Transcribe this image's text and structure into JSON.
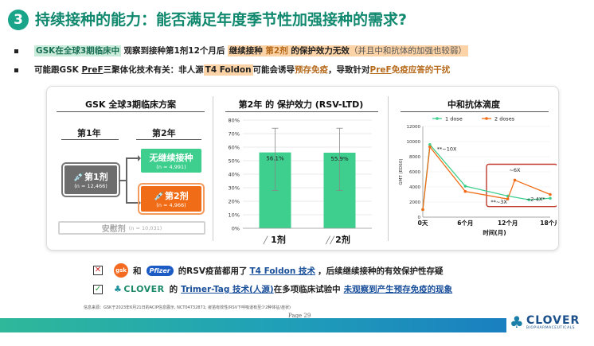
{
  "header": {
    "number": "3",
    "title": "持续接种的能力：能否满足年度季节性加强接种的需求?"
  },
  "bullets": {
    "b1_hl": "GSK在全球3期临床中",
    "b1_mid": "观察到接种第1剂12个月后",
    "b1_hl2": "继续接种",
    "b1_dose": "第2剂",
    "b1_end": "的保护效力无效",
    "b1_paren": "（并且中和抗体的加强也较弱）",
    "b2_a": "可能跟GSK ",
    "b2_pref": "PreF",
    "b2_b": "三聚体化技术有关：非人源",
    "b2_hl": "T4 Foldon",
    "b2_c": "可能会诱导",
    "b2_d": "预存免疫",
    "b2_e": "，导致针对",
    "b2_f": "PreF",
    "b2_g": "免疫应答的干扰"
  },
  "panel1": {
    "title": "GSK 全球3期临床方案",
    "year1": "第1年",
    "year2": "第2年",
    "dose1_label": "第1剂",
    "dose1_n": "(n = 12,466)",
    "nocont_label": "无继续接种",
    "nocont_n": "(n = 4,991)",
    "dose2_label": "第2剂",
    "dose2_n": "(n = 4,966)",
    "placebo_label": "安慰剂",
    "placebo_n": "(n = 10,031)",
    "syringe_icon": "syringe-icon"
  },
  "panel2": {
    "title": "第2年 的 保护效力 (RSV-LTD)"
  },
  "panel3": {
    "title": "中和抗体滴度"
  },
  "chart_data": [
    {
      "type": "bar",
      "title": "第2年 的 保护效力 (RSV-LTD)",
      "categories": [
        "1剂",
        "2剂"
      ],
      "values": [
        56.1,
        55.9
      ],
      "data_labels": [
        "56.1%",
        "55.9%"
      ],
      "error_low": [
        28,
        28
      ],
      "error_high": [
        74,
        74
      ],
      "ylim": [
        0,
        80
      ],
      "yticks": [
        "0%",
        "10%",
        "20%",
        "30%",
        "40%",
        "50%",
        "60%",
        "70%",
        "80%"
      ],
      "color": "#3ecf8e",
      "grid": true
    },
    {
      "type": "line",
      "title": "中和抗体滴度",
      "ylabel": "GMT (ED60)",
      "xlabel": "时间(月)",
      "x": [
        0,
        1,
        6,
        12,
        18
      ],
      "xtick_labels": [
        "0天",
        "6个月",
        "12个月",
        "18个月"
      ],
      "xtick_values": [
        0,
        6,
        12,
        18
      ],
      "ylim": [
        0,
        12000
      ],
      "yticks": [
        "0",
        "2000",
        "4000",
        "6000",
        "8000",
        "10000",
        "12000"
      ],
      "legend_position": "top",
      "series": [
        {
          "name": "1 dose",
          "color": "#3ecf8e",
          "points": [
            [
              0,
              1000
            ],
            [
              1,
              9600
            ],
            [
              6,
              4100
            ],
            [
              12,
              2800
            ],
            [
              15,
              2300
            ],
            [
              18,
              2500
            ]
          ]
        },
        {
          "name": "2 doses",
          "color": "#f06c16",
          "points": [
            [
              0,
              1000
            ],
            [
              1,
              9300
            ],
            [
              6,
              3400
            ],
            [
              12,
              2400
            ],
            [
              13,
              4900
            ],
            [
              18,
              3000
            ]
          ]
        }
      ],
      "annotations": [
        "**~10X",
        "~6X",
        "**~3X",
        "~2-4X*"
      ],
      "highlight_color": "#c0392b"
    }
  ],
  "bottom": {
    "row1_and": "和",
    "row1_gsk": "gsk",
    "row1_pfizer": "Pfizer",
    "row1_text1": "的RSV疫苗都用了",
    "row1_tech": "T4 Foldon 技术",
    "row1_text2": "，后续继续接种的有效保护性存疑",
    "row2_clover": "CLOVER",
    "row2_de": "的",
    "row2_tech": "Trimer-Tag 技术(人源)",
    "row2_text1": "在多项临床试验中",
    "row2_text2": "未观察到产生预存免疫的现象"
  },
  "footer": {
    "footnote": "信息来源：GSK于2023年6月21日的ACIP信息展示, NCT04732871; 疫苗有效性(RSV下呼吸道有至少2种体征/症状)",
    "page": "Page 29",
    "logo_text": "CLOVER",
    "logo_sub": "BIOPHARMACEUTICALS"
  }
}
